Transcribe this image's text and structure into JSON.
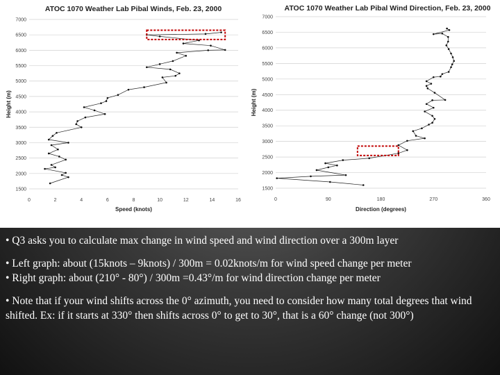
{
  "colors": {
    "line": "#222222",
    "highlight": "#c00000",
    "text": "#ffffff"
  },
  "chart_data": [
    {
      "type": "line",
      "title": "ATOC 1070 Weather Lab Pibal Winds, Feb. 23, 2000",
      "xlabel": "Speed (knots)",
      "ylabel": "Height (m)",
      "xlim": [
        0,
        16
      ],
      "ylim": [
        1500,
        7000
      ],
      "x_ticks": [
        "0",
        "2",
        "4",
        "6",
        "8",
        "10",
        "12",
        "14",
        "16"
      ],
      "y_ticks": [
        "1500",
        "2000",
        "2500",
        "3000",
        "3500",
        "4000",
        "4500",
        "5000",
        "5500",
        "6000",
        "6500",
        "7000"
      ],
      "grid": true,
      "series": [
        {
          "points": [
            [
              1.6,
              1680
            ],
            [
              3.0,
              1880
            ],
            [
              2.5,
              1950
            ],
            [
              2.8,
              2020
            ],
            [
              1.2,
              2150
            ],
            [
              2.0,
              2200
            ],
            [
              1.7,
              2280
            ],
            [
              2.8,
              2450
            ],
            [
              2.3,
              2550
            ],
            [
              1.5,
              2650
            ],
            [
              2.2,
              2780
            ],
            [
              1.7,
              2920
            ],
            [
              3.0,
              3000
            ],
            [
              1.5,
              3100
            ],
            [
              1.8,
              3220
            ],
            [
              2.1,
              3320
            ],
            [
              4.0,
              3500
            ],
            [
              3.6,
              3600
            ],
            [
              3.7,
              3700
            ],
            [
              4.3,
              3820
            ],
            [
              5.8,
              3930
            ],
            [
              5.0,
              4050
            ],
            [
              4.2,
              4150
            ],
            [
              5.5,
              4280
            ],
            [
              5.9,
              4350
            ],
            [
              6.0,
              4450
            ],
            [
              6.8,
              4550
            ],
            [
              7.6,
              4720
            ],
            [
              8.8,
              4800
            ],
            [
              10.5,
              4950
            ],
            [
              10.2,
              5120
            ],
            [
              11.2,
              5170
            ],
            [
              11.5,
              5250
            ],
            [
              10.8,
              5380
            ],
            [
              9.0,
              5450
            ],
            [
              10.0,
              5550
            ],
            [
              11.0,
              5650
            ],
            [
              12.0,
              5820
            ],
            [
              11.3,
              5920
            ],
            [
              13.7,
              6000
            ],
            [
              15.0,
              6010
            ],
            [
              13.9,
              6150
            ],
            [
              11.8,
              6220
            ],
            [
              13.0,
              6320
            ],
            [
              10.0,
              6450
            ],
            [
              9.0,
              6500
            ],
            [
              13.5,
              6530
            ],
            [
              14.7,
              6580
            ]
          ]
        }
      ],
      "highlight_range": {
        "x": [
          9,
          15
        ],
        "y": [
          6350,
          6650
        ]
      }
    },
    {
      "type": "line",
      "title": "ATOC 1070 Weather Lab Pibal Wind Direction, Feb. 23, 2000",
      "xlabel": "Direction (degrees)",
      "ylabel": "Height (m)",
      "xlim": [
        0,
        360
      ],
      "ylim": [
        1500,
        7000
      ],
      "x_ticks": [
        "0",
        "90",
        "180",
        "270",
        "360"
      ],
      "y_ticks": [
        "1500",
        "2000",
        "2500",
        "3000",
        "3500",
        "4000",
        "4500",
        "5000",
        "5500",
        "6000",
        "6500",
        "7000"
      ],
      "grid": true,
      "series": [
        {
          "points": [
            [
              150,
              1600
            ],
            [
              93,
              1700
            ],
            [
              2,
              1820
            ],
            [
              60,
              1880
            ],
            [
              120,
              1920
            ],
            [
              70,
              2080
            ],
            [
              90,
              2170
            ],
            [
              105,
              2230
            ],
            [
              85,
              2300
            ],
            [
              115,
              2400
            ],
            [
              160,
              2460
            ],
            [
              210,
              2620
            ],
            [
              225,
              2720
            ],
            [
              210,
              2880
            ],
            [
              225,
              3020
            ],
            [
              255,
              3100
            ],
            [
              240,
              3180
            ],
            [
              235,
              3330
            ],
            [
              250,
              3420
            ],
            [
              262,
              3540
            ],
            [
              268,
              3600
            ],
            [
              272,
              3720
            ],
            [
              268,
              3820
            ],
            [
              255,
              3960
            ],
            [
              270,
              4080
            ],
            [
              258,
              4200
            ],
            [
              268,
              4320
            ],
            [
              290,
              4330
            ],
            [
              272,
              4560
            ],
            [
              260,
              4700
            ],
            [
              258,
              4780
            ],
            [
              266,
              4850
            ],
            [
              258,
              4930
            ],
            [
              270,
              5060
            ],
            [
              282,
              5080
            ],
            [
              285,
              5160
            ],
            [
              296,
              5230
            ],
            [
              300,
              5380
            ],
            [
              302,
              5470
            ],
            [
              305,
              5580
            ],
            [
              303,
              5700
            ],
            [
              300,
              5820
            ],
            [
              296,
              5960
            ],
            [
              292,
              6080
            ],
            [
              295,
              6200
            ],
            [
              295,
              6350
            ],
            [
              285,
              6460
            ],
            [
              270,
              6440
            ],
            [
              297,
              6570
            ],
            [
              293,
              6620
            ]
          ]
        }
      ],
      "highlight_range": {
        "x": [
          140,
          210
        ],
        "y": [
          2550,
          2850
        ]
      }
    }
  ],
  "notes": [
    "• Q3 asks you to calculate max change in wind speed and wind direction over a 300m layer",
    "• Left graph: about (15knots – 9knots) / 300m = 0.02knots/m for wind speed change per meter",
    "• Right graph: about (210° - 80°) / 300m =0.43°/m for wind direction change per meter",
    "• Note that if your wind shifts across the 0° azimuth, you need to consider how many total degrees that wind shifted. Ex: if it starts at 330° then shifts across 0° to get to 30°, that is a 60° change (not 300°)"
  ]
}
